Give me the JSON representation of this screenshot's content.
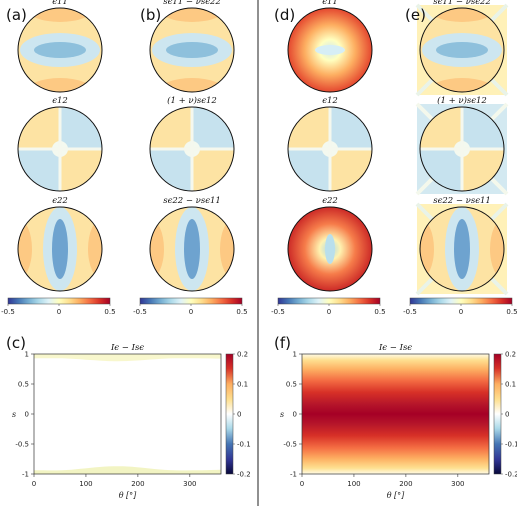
{
  "panel_labels": [
    "(a)",
    "(b)",
    "(c)",
    "(d)",
    "(e)",
    "(f)"
  ],
  "disc_titles": {
    "a": [
      "ϵ11",
      "ϵ12",
      "ϵ22"
    ],
    "b": [
      "sϵ11 − νsϵ22",
      "(1 + ν)sϵ12",
      "sϵ22 − νsϵ11"
    ],
    "d": [
      "ϵ11",
      "ϵ12",
      "ϵ22"
    ],
    "e": [
      "sϵ11 − νsϵ22",
      "(1 + ν)sϵ12",
      "sϵ22 − νsϵ11"
    ]
  },
  "disc_colorbar": {
    "min": -0.5,
    "max": 0.5,
    "tick_labels": [
      "-0.5",
      "0",
      "0.5"
    ],
    "colors": [
      "#313695",
      "#4575b4",
      "#74add1",
      "#abd9e9",
      "#e0f3f8",
      "#ffffbf",
      "#fee090",
      "#fdae61",
      "#f46d43",
      "#d73027",
      "#a50026"
    ]
  },
  "chart_data": [
    {
      "type": "heatmap",
      "panel": "(c)",
      "title": "Iϵ − Isϵ",
      "xlabel": "θ [°]",
      "ylabel": "s",
      "xlim": [
        0,
        360
      ],
      "ylim": [
        -1,
        1
      ],
      "x_ticks": [
        0,
        100,
        200,
        300
      ],
      "x_tick_labels": [
        "0",
        "100",
        "200",
        "300"
      ],
      "y_ticks": [
        1,
        0.5,
        0,
        -0.5,
        -1
      ],
      "y_tick_labels": [
        "1",
        "0.5",
        "0",
        "-0.5",
        "-1"
      ],
      "colorbar": {
        "min": -0.2,
        "max": 0.2,
        "ticks": [
          "0.2",
          "0.1",
          "0",
          "-0.1",
          "-0.2"
        ]
      },
      "field": "near zero everywhere; slight positive bands near s = ±1"
    },
    {
      "type": "heatmap",
      "panel": "(f)",
      "title": "Iϵ − Isϵ",
      "xlabel": "θ [°]",
      "ylabel": "s",
      "xlim": [
        0,
        360
      ],
      "ylim": [
        -1,
        1
      ],
      "x_ticks": [
        0,
        100,
        200,
        300
      ],
      "x_tick_labels": [
        "0",
        "100",
        "200",
        "300"
      ],
      "y_ticks": [
        1,
        0.5,
        0,
        -0.5,
        -1
      ],
      "y_tick_labels": [
        "1",
        "0.5",
        "0",
        "-0.5",
        "-1"
      ],
      "colorbar": {
        "min": -0.2,
        "max": 0.2,
        "ticks": [
          "0.2",
          "0.1",
          "0",
          "-0.1",
          "-0.2"
        ]
      },
      "field": "uniform in θ; ≈0.2 at s = 0 falling to ≈0 at s = ±1"
    }
  ]
}
